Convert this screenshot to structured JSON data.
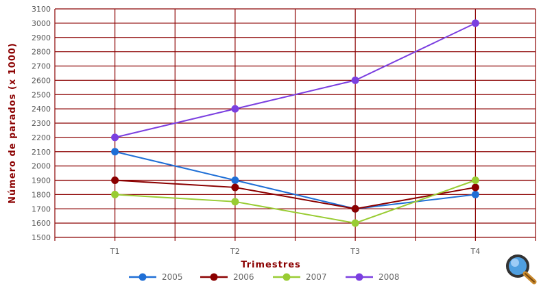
{
  "chart_data": {
    "type": "line",
    "categories": [
      "T1",
      "T2",
      "T3",
      "T4"
    ],
    "xlabel": "Trimestres",
    "ylabel": "Número de parados (x 1000)",
    "ylim": [
      1500,
      3100
    ],
    "ytick_step": 100,
    "grid": true,
    "legend_position": "bottom",
    "series": [
      {
        "name": "2005",
        "color": "#1f6fd6",
        "values": [
          2100,
          1900,
          1700,
          1800
        ]
      },
      {
        "name": "2006",
        "color": "#8b0000",
        "values": [
          1900,
          1850,
          1700,
          1850
        ]
      },
      {
        "name": "2007",
        "color": "#99cc33",
        "values": [
          1800,
          1750,
          1600,
          1900
        ]
      },
      {
        "name": "2008",
        "color": "#7b3fe0",
        "values": [
          2200,
          2400,
          2600,
          3000
        ]
      }
    ]
  },
  "colors": {
    "grid": "#8b0000",
    "axis_title": "#8b0000"
  },
  "icons": {
    "zoom": "magnifier-icon"
  }
}
